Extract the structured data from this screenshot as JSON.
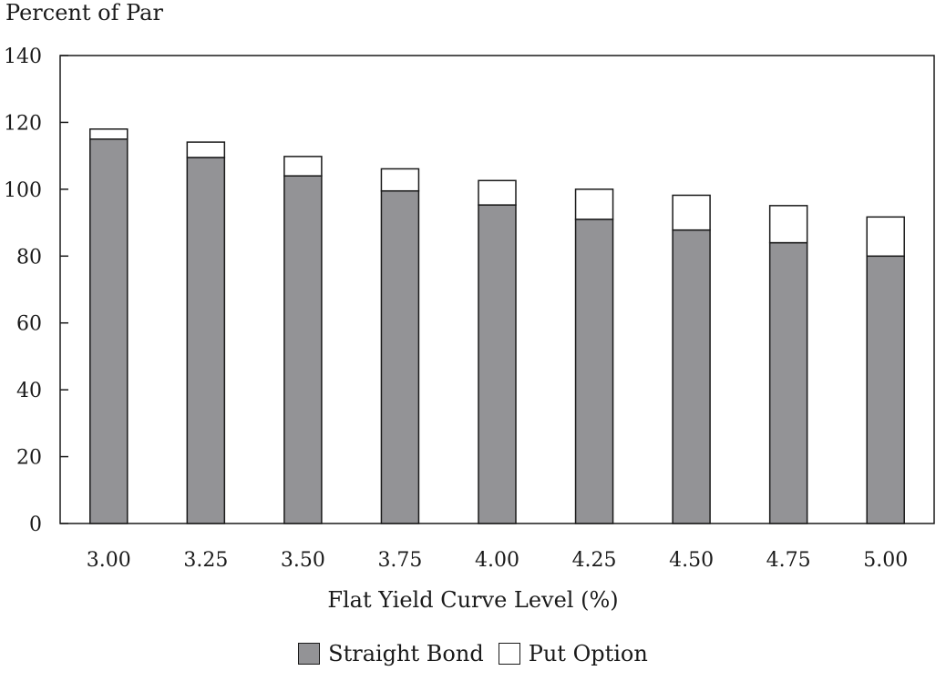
{
  "chart_data": {
    "type": "bar",
    "stacked": true,
    "ylabel": "Percent of Par",
    "xlabel": "Flat Yield Curve Level (%)",
    "categories": [
      "3.00",
      "3.25",
      "3.50",
      "3.75",
      "4.00",
      "4.25",
      "4.50",
      "4.75",
      "5.00"
    ],
    "ylim": [
      0,
      140
    ],
    "yticks": [
      "0",
      "20",
      "40",
      "60",
      "80",
      "100",
      "120",
      "140"
    ],
    "grid": false,
    "legend_position": "bottom",
    "series": [
      {
        "name": "Straight Bond",
        "color": "#939396",
        "values": [
          115.0,
          109.5,
          104.0,
          99.5,
          95.3,
          91.0,
          87.8,
          84.0,
          80.0
        ]
      },
      {
        "name": "Put Option",
        "color": "#ffffff",
        "values": [
          3.0,
          4.6,
          5.8,
          6.6,
          7.3,
          9.0,
          10.4,
          11.1,
          11.7
        ]
      }
    ]
  }
}
